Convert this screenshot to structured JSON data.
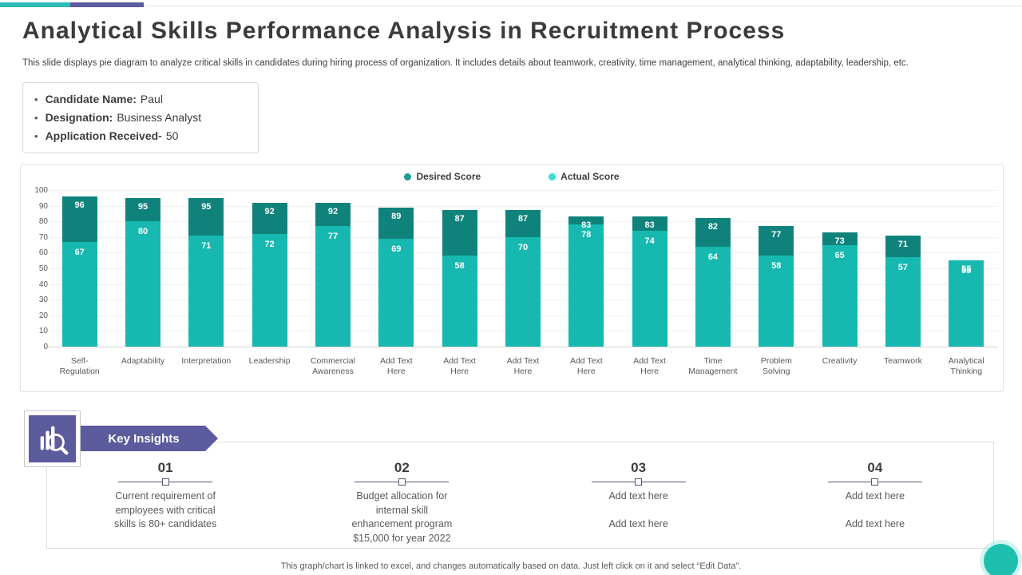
{
  "header": {
    "title": "Analytical Skills Performance Analysis in Recruitment Process",
    "subtitle": "This slide displays pie diagram to analyze critical skills in candidates during hiring process of organization. It includes details about teamwork, creativity,  time management, analytical thinking, adaptability, leadership, etc."
  },
  "candidate": {
    "items": [
      {
        "label": "Candidate Name:",
        "value": "Paul"
      },
      {
        "label": "Designation:",
        "value": "Business Analyst"
      },
      {
        "label": "Application Received-",
        "value": "50"
      }
    ]
  },
  "chart_data": {
    "type": "bar",
    "title": "",
    "categories": [
      "Self-\nRegulation",
      "Adaptability",
      "Interpretation",
      "Leadership",
      "Commercial\nAwareness",
      "Add Text\nHere",
      "Add Text\nHere",
      "Add Text\nHere",
      "Add Text\nHere",
      "Add Text\nHere",
      "Time\nManagement",
      "Problem\nSolving",
      "Creativity",
      "Teamwork",
      "Analytical\nThinking"
    ],
    "series": [
      {
        "name": "Desired Score",
        "values": [
          96,
          95,
          95,
          92,
          92,
          89,
          87,
          87,
          83,
          83,
          82,
          77,
          73,
          71,
          55
        ]
      },
      {
        "name": "Actual Score",
        "values": [
          67,
          80,
          71,
          72,
          77,
          69,
          58,
          70,
          78,
          74,
          64,
          58,
          65,
          57,
          55
        ]
      }
    ],
    "xlabel": "",
    "ylabel": "",
    "ylim": [
      0,
      100
    ],
    "yticks": [
      0,
      10,
      20,
      30,
      40,
      50,
      60,
      70,
      80,
      90,
      100
    ],
    "grid": true,
    "legend_position": "top-center",
    "colors": {
      "desired_bar": "#0f837b",
      "actual_bar": "#16b8af",
      "desired_dot": "#1b9e93",
      "actual_dot": "#3bdfd4"
    }
  },
  "insights": {
    "banner_label": "Key Insights",
    "items": [
      {
        "number": "01",
        "text": "Current requirement of\nemployees with critical\nskills is 80+ candidates"
      },
      {
        "number": "02",
        "text": "Budget allocation for\ninternal skill\nenhancement program\n$15,000 for year 2022"
      },
      {
        "number": "03",
        "text": "Add text here\n\nAdd text here"
      },
      {
        "number": "04",
        "text": "Add text here\n\nAdd text here"
      }
    ]
  },
  "footer": {
    "note": "This graph/chart is linked to excel,  and changes automatically based on data. Just left click on it and select “Edit Data”."
  }
}
